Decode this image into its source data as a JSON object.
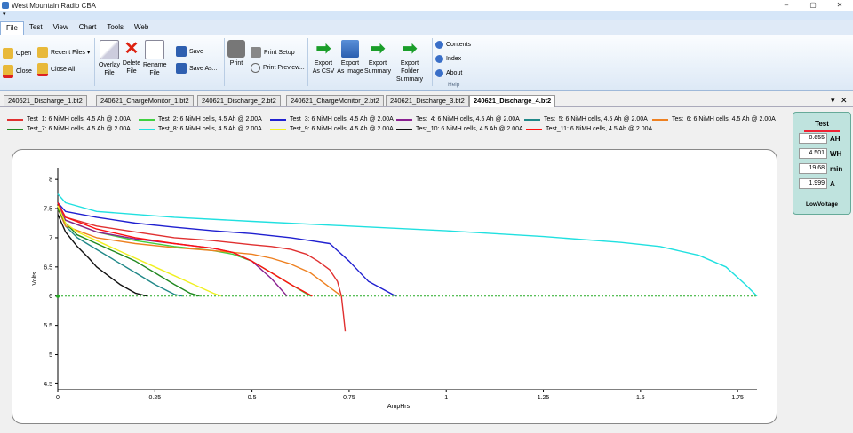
{
  "window": {
    "title": "West Mountain Radio CBA",
    "controls": [
      "–",
      "▢",
      "✕"
    ]
  },
  "qat_arrow": "▾",
  "menu": {
    "items": [
      "File",
      "Test",
      "View",
      "Chart",
      "Tools",
      "Web"
    ]
  },
  "ribbon": {
    "open": "Open",
    "close": "Close",
    "recent_files": "Recent Files ▾",
    "close_all": "Close All",
    "overlay_file": [
      "Overlay",
      "File"
    ],
    "delete_file": [
      "Delete",
      "File"
    ],
    "rename_file": [
      "Rename",
      "File"
    ],
    "save": "Save",
    "save_as": "Save As...",
    "print": "Print",
    "print_setup": "Print Setup",
    "print_preview": "Print Preview...",
    "export_csv": [
      "Export",
      "As CSV"
    ],
    "export_image": [
      "Export",
      "As Image"
    ],
    "export_summary": [
      "Export",
      "Summary"
    ],
    "export_folder_summary": [
      "Export Folder",
      "Summary"
    ],
    "contents": "Contents",
    "index": "Index",
    "about": "About",
    "help_group": "Help"
  },
  "doc_tabs": [
    "240621_Discharge_1.bt2",
    "240621_ChargeMonitor_1.bt2",
    "240621_Discharge_2.bt2",
    "240621_ChargeMonitor_2.bt2",
    "240621_Discharge_3.bt2",
    "240621_Discharge_4.bt2"
  ],
  "tab_controls": {
    "dropdown": "▾",
    "close": "✕"
  },
  "side_panel": {
    "title": "Test",
    "accent": "#e02020",
    "rows": [
      {
        "value": "0.655",
        "unit": "AH"
      },
      {
        "value": "4.501",
        "unit": "WH"
      },
      {
        "value": "19.68",
        "unit": "min"
      },
      {
        "value": "1.999",
        "unit": "A"
      }
    ],
    "status": "LowVoltage"
  },
  "chart_data": {
    "type": "line",
    "xlabel": "AmpHrs",
    "ylabel": "Volts",
    "xlim": [
      0,
      1.8
    ],
    "ylim": [
      4.4,
      8.2
    ],
    "xticks": [
      "0",
      "0.25",
      "0.5",
      "0.75",
      "1",
      "1.25",
      "1.5",
      "1.75"
    ],
    "xtick_values": [
      0,
      0.25,
      0.5,
      0.75,
      1,
      1.25,
      1.5,
      1.75
    ],
    "yticks": [
      "4.5",
      "5",
      "5.5",
      "6",
      "6.5",
      "7",
      "7.5",
      "8"
    ],
    "ytick_values": [
      4.5,
      5,
      5.5,
      6,
      6.5,
      7,
      7.5,
      8
    ],
    "cutoff": {
      "value": 6.0,
      "color": "#22aa22"
    },
    "series": [
      {
        "name": "Test_1: 6 NiMH cells, 4.5 Ah @ 2.00A",
        "color": "#e03030",
        "x": [
          0,
          0.02,
          0.1,
          0.2,
          0.3,
          0.4,
          0.5,
          0.55,
          0.6,
          0.64,
          0.67,
          0.7,
          0.72,
          0.73,
          0.735,
          0.74
        ],
        "y": [
          7.6,
          7.35,
          7.2,
          7.1,
          7.0,
          6.95,
          6.88,
          6.85,
          6.8,
          6.72,
          6.6,
          6.45,
          6.25,
          6.0,
          5.7,
          5.4
        ]
      },
      {
        "name": "Test_2: 6 NiMH cells, 4.5 Ah @ 2.00A",
        "color": "#40d040",
        "x": [
          0,
          0.02,
          0.1,
          0.2,
          0.3,
          0.4,
          0.45,
          0.5,
          0.55,
          0.6,
          0.65
        ],
        "y": [
          7.55,
          7.3,
          7.1,
          6.95,
          6.85,
          6.78,
          6.72,
          6.6,
          6.4,
          6.2,
          6.0
        ]
      },
      {
        "name": "Test_3: 6 NiMH cells, 4.5 Ah @ 2.00A",
        "color": "#2020d0",
        "x": [
          0,
          0.02,
          0.1,
          0.2,
          0.3,
          0.4,
          0.5,
          0.6,
          0.65,
          0.7,
          0.75,
          0.8,
          0.87
        ],
        "y": [
          7.6,
          7.45,
          7.35,
          7.25,
          7.18,
          7.12,
          7.07,
          7.0,
          6.95,
          6.9,
          6.6,
          6.25,
          6.0
        ]
      },
      {
        "name": "Test_4: 6 NiMH cells, 4.5 Ah @ 2.00A",
        "color": "#8a2090",
        "x": [
          0,
          0.02,
          0.1,
          0.2,
          0.3,
          0.4,
          0.45,
          0.5,
          0.55,
          0.59
        ],
        "y": [
          7.55,
          7.3,
          7.1,
          6.98,
          6.9,
          6.82,
          6.75,
          6.6,
          6.3,
          6.0
        ]
      },
      {
        "name": "Test_5: 6 NiMH cells, 4.5 Ah @ 2.00A",
        "color": "#208888",
        "x": [
          0,
          0.02,
          0.05,
          0.1,
          0.15,
          0.2,
          0.25,
          0.3,
          0.32
        ],
        "y": [
          7.5,
          7.2,
          7.0,
          6.8,
          6.6,
          6.4,
          6.2,
          6.03,
          6.0
        ]
      },
      {
        "name": "Test_6: 6 NiMH cells, 4.5 Ah @ 2.00A",
        "color": "#ee8020",
        "x": [
          0,
          0.02,
          0.1,
          0.2,
          0.3,
          0.4,
          0.5,
          0.55,
          0.6,
          0.65,
          0.7,
          0.73
        ],
        "y": [
          7.5,
          7.2,
          7.0,
          6.9,
          6.83,
          6.78,
          6.72,
          6.65,
          6.55,
          6.4,
          6.15,
          6.0
        ]
      },
      {
        "name": "Test_7: 6 NiMH cells, 4.5 Ah @ 2.00A",
        "color": "#208820",
        "x": [
          0,
          0.02,
          0.05,
          0.1,
          0.15,
          0.2,
          0.25,
          0.3,
          0.34,
          0.365
        ],
        "y": [
          7.5,
          7.25,
          7.05,
          6.9,
          6.75,
          6.6,
          6.4,
          6.2,
          6.05,
          6.0
        ]
      },
      {
        "name": "Test_8: 6 NiMH cells, 4.5 Ah @ 2.00A",
        "color": "#20e0e0",
        "x": [
          0,
          0.02,
          0.1,
          0.3,
          0.5,
          0.75,
          1.0,
          1.25,
          1.45,
          1.55,
          1.65,
          1.72,
          1.77,
          1.8
        ],
        "y": [
          7.75,
          7.6,
          7.45,
          7.35,
          7.28,
          7.2,
          7.12,
          7.02,
          6.92,
          6.85,
          6.7,
          6.5,
          6.2,
          6.0
        ]
      },
      {
        "name": "Test_9: 6 NiMH cells, 4.5 Ah @ 2.00A",
        "color": "#f0f020",
        "x": [
          0,
          0.02,
          0.05,
          0.1,
          0.15,
          0.2,
          0.25,
          0.3,
          0.35,
          0.4,
          0.42
        ],
        "y": [
          7.55,
          7.25,
          7.1,
          6.95,
          6.8,
          6.65,
          6.5,
          6.35,
          6.2,
          6.05,
          6.0
        ]
      },
      {
        "name": "Test_10: 6 NiMH cells, 4.5 Ah @ 2.00A",
        "color": "#111111",
        "x": [
          0,
          0.02,
          0.05,
          0.08,
          0.1,
          0.13,
          0.16,
          0.2,
          0.23
        ],
        "y": [
          7.4,
          7.1,
          6.85,
          6.65,
          6.5,
          6.35,
          6.2,
          6.05,
          6.0
        ]
      },
      {
        "name": "Test_11: 6 NiMH cells, 4.5 Ah @ 2.00A",
        "color": "#ff1010",
        "x": [
          0,
          0.02,
          0.1,
          0.2,
          0.3,
          0.4,
          0.45,
          0.5,
          0.55,
          0.6,
          0.655
        ],
        "y": [
          7.6,
          7.35,
          7.15,
          7.0,
          6.9,
          6.82,
          6.75,
          6.6,
          6.4,
          6.2,
          6.0
        ]
      }
    ]
  }
}
